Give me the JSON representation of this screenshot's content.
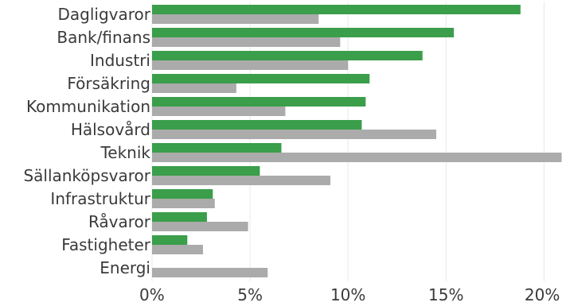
{
  "chart_data": {
    "type": "bar",
    "orientation": "horizontal",
    "categories": [
      "Dagligvaror",
      "Bank/finans",
      "Industri",
      "Försäkring",
      "Kommunikation",
      "Hälsovård",
      "Teknik",
      "Sällanköpsvaror",
      "Infrastruktur",
      "Råvaror",
      "Fastigheter",
      "Energi"
    ],
    "series": [
      {
        "color": "#3a9e4a",
        "values": [
          18.8,
          15.4,
          13.8,
          11.1,
          10.9,
          10.7,
          6.6,
          5.5,
          3.1,
          2.8,
          1.8,
          0.0
        ]
      },
      {
        "color": "#ababab",
        "values": [
          8.5,
          9.6,
          10.0,
          4.3,
          6.8,
          14.5,
          20.9,
          9.1,
          3.2,
          4.9,
          2.6,
          5.9
        ]
      }
    ],
    "xlim": [
      0,
      21
    ],
    "xticks": [
      0,
      5,
      10,
      15,
      20
    ],
    "xtick_labels": [
      "0%",
      "5%",
      "10%",
      "15%",
      "20%"
    ],
    "grid": "vertical",
    "title": "",
    "xlabel": "",
    "ylabel": ""
  }
}
